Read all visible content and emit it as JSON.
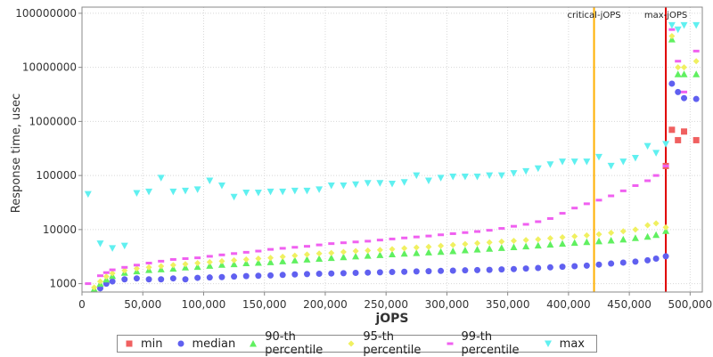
{
  "chart_data": {
    "type": "scatter",
    "title": "",
    "xlabel": "jOPS",
    "ylabel": "Response time, usec",
    "xlim": [
      0,
      510000
    ],
    "ylim": [
      700,
      130000000
    ],
    "y_scale": "log",
    "grid": true,
    "legend_placement": "bottom",
    "x_ticks": [
      0,
      50000,
      100000,
      150000,
      200000,
      250000,
      300000,
      350000,
      400000,
      450000,
      500000
    ],
    "x_tick_labels": [
      "0",
      "50,000",
      "100,000",
      "150,000",
      "200,000",
      "250,000",
      "300,000",
      "350,000",
      "400,000",
      "450,000",
      "500,000"
    ],
    "y_ticks": [
      1000,
      10000,
      100000,
      1000000,
      10000000,
      100000000
    ],
    "y_tick_labels": [
      "1000",
      "10000",
      "100000",
      "1000000",
      "10000000",
      "100000000"
    ],
    "markers": [
      {
        "label": "critical-jOPS",
        "x": 421000,
        "color": "#ffb000"
      },
      {
        "label": "max-jOPS",
        "x": 480000,
        "color": "#e00000"
      }
    ],
    "series": [
      {
        "name": "min",
        "color": "#f06060",
        "shape": "square",
        "points": [
          [
            480000,
            150000
          ],
          [
            485000,
            700000
          ],
          [
            490000,
            450000
          ],
          [
            495000,
            650000
          ],
          [
            505000,
            450000
          ]
        ]
      },
      {
        "name": "median",
        "color": "#6060f0",
        "shape": "circle",
        "points": [
          [
            15000,
            820
          ],
          [
            20000,
            1000
          ],
          [
            25000,
            1100
          ],
          [
            35000,
            1200
          ],
          [
            45000,
            1250
          ],
          [
            55000,
            1200
          ],
          [
            65000,
            1200
          ],
          [
            75000,
            1250
          ],
          [
            85000,
            1200
          ],
          [
            95000,
            1280
          ],
          [
            105000,
            1300
          ],
          [
            115000,
            1320
          ],
          [
            125000,
            1350
          ],
          [
            135000,
            1380
          ],
          [
            145000,
            1400
          ],
          [
            155000,
            1420
          ],
          [
            165000,
            1450
          ],
          [
            175000,
            1480
          ],
          [
            185000,
            1500
          ],
          [
            195000,
            1520
          ],
          [
            205000,
            1540
          ],
          [
            215000,
            1560
          ],
          [
            225000,
            1580
          ],
          [
            235000,
            1600
          ],
          [
            245000,
            1620
          ],
          [
            255000,
            1640
          ],
          [
            265000,
            1660
          ],
          [
            275000,
            1680
          ],
          [
            285000,
            1700
          ],
          [
            295000,
            1720
          ],
          [
            305000,
            1740
          ],
          [
            315000,
            1760
          ],
          [
            325000,
            1780
          ],
          [
            335000,
            1800
          ],
          [
            345000,
            1830
          ],
          [
            355000,
            1860
          ],
          [
            365000,
            1900
          ],
          [
            375000,
            1950
          ],
          [
            385000,
            2000
          ],
          [
            395000,
            2050
          ],
          [
            405000,
            2100
          ],
          [
            415000,
            2150
          ],
          [
            425000,
            2250
          ],
          [
            435000,
            2350
          ],
          [
            445000,
            2450
          ],
          [
            455000,
            2550
          ],
          [
            465000,
            2700
          ],
          [
            472000,
            2900
          ],
          [
            480000,
            3200
          ],
          [
            485000,
            5000000
          ],
          [
            490000,
            3500000
          ],
          [
            495000,
            2700000
          ],
          [
            505000,
            2600000
          ]
        ]
      },
      {
        "name": "90-th percentile",
        "color": "#60f060",
        "shape": "triangle-up",
        "points": [
          [
            10000,
            800
          ],
          [
            15000,
            1000
          ],
          [
            20000,
            1200
          ],
          [
            25000,
            1400
          ],
          [
            35000,
            1600
          ],
          [
            45000,
            1700
          ],
          [
            55000,
            1800
          ],
          [
            65000,
            1850
          ],
          [
            75000,
            1900
          ],
          [
            85000,
            2000
          ],
          [
            95000,
            2050
          ],
          [
            105000,
            2150
          ],
          [
            115000,
            2250
          ],
          [
            125000,
            2300
          ],
          [
            135000,
            2400
          ],
          [
            145000,
            2450
          ],
          [
            155000,
            2500
          ],
          [
            165000,
            2600
          ],
          [
            175000,
            2700
          ],
          [
            185000,
            2800
          ],
          [
            195000,
            2900
          ],
          [
            205000,
            3000
          ],
          [
            215000,
            3100
          ],
          [
            225000,
            3200
          ],
          [
            235000,
            3300
          ],
          [
            245000,
            3400
          ],
          [
            255000,
            3500
          ],
          [
            265000,
            3600
          ],
          [
            275000,
            3700
          ],
          [
            285000,
            3800
          ],
          [
            295000,
            3900
          ],
          [
            305000,
            4000
          ],
          [
            315000,
            4150
          ],
          [
            325000,
            4300
          ],
          [
            335000,
            4450
          ],
          [
            345000,
            4600
          ],
          [
            355000,
            4750
          ],
          [
            365000,
            4900
          ],
          [
            375000,
            5100
          ],
          [
            385000,
            5300
          ],
          [
            395000,
            5500
          ],
          [
            405000,
            5700
          ],
          [
            415000,
            5900
          ],
          [
            425000,
            6100
          ],
          [
            435000,
            6300
          ],
          [
            445000,
            6600
          ],
          [
            455000,
            7000
          ],
          [
            465000,
            7400
          ],
          [
            472000,
            8000
          ],
          [
            480000,
            9500
          ],
          [
            485000,
            33000000
          ],
          [
            490000,
            7500000
          ],
          [
            495000,
            7500000
          ],
          [
            505000,
            7500000
          ]
        ]
      },
      {
        "name": "95-th percentile",
        "color": "#f0f060",
        "shape": "diamond",
        "points": [
          [
            10000,
            850
          ],
          [
            15000,
            1100
          ],
          [
            20000,
            1350
          ],
          [
            25000,
            1550
          ],
          [
            35000,
            1750
          ],
          [
            45000,
            1900
          ],
          [
            55000,
            2000
          ],
          [
            65000,
            2100
          ],
          [
            75000,
            2200
          ],
          [
            85000,
            2300
          ],
          [
            95000,
            2400
          ],
          [
            105000,
            2500
          ],
          [
            115000,
            2600
          ],
          [
            125000,
            2700
          ],
          [
            135000,
            2800
          ],
          [
            145000,
            2900
          ],
          [
            155000,
            3000
          ],
          [
            165000,
            3150
          ],
          [
            175000,
            3300
          ],
          [
            185000,
            3450
          ],
          [
            195000,
            3600
          ],
          [
            205000,
            3700
          ],
          [
            215000,
            3850
          ],
          [
            225000,
            4000
          ],
          [
            235000,
            4100
          ],
          [
            245000,
            4200
          ],
          [
            255000,
            4350
          ],
          [
            265000,
            4500
          ],
          [
            275000,
            4650
          ],
          [
            285000,
            4800
          ],
          [
            295000,
            5000
          ],
          [
            305000,
            5200
          ],
          [
            315000,
            5400
          ],
          [
            325000,
            5600
          ],
          [
            335000,
            5800
          ],
          [
            345000,
            6000
          ],
          [
            355000,
            6200
          ],
          [
            365000,
            6400
          ],
          [
            375000,
            6600
          ],
          [
            385000,
            6900
          ],
          [
            395000,
            7200
          ],
          [
            405000,
            7500
          ],
          [
            415000,
            7800
          ],
          [
            425000,
            8200
          ],
          [
            435000,
            8700
          ],
          [
            445000,
            9300
          ],
          [
            455000,
            10000
          ],
          [
            465000,
            12000
          ],
          [
            472000,
            13000
          ],
          [
            480000,
            11000
          ],
          [
            485000,
            38000000
          ],
          [
            490000,
            10000000
          ],
          [
            495000,
            10000000
          ],
          [
            505000,
            13000000
          ]
        ]
      },
      {
        "name": "99-th percentile",
        "color": "#f060f0",
        "shape": "plus",
        "points": [
          [
            5000,
            1000
          ],
          [
            15000,
            1400
          ],
          [
            20000,
            1600
          ],
          [
            25000,
            1800
          ],
          [
            35000,
            2000
          ],
          [
            45000,
            2200
          ],
          [
            55000,
            2400
          ],
          [
            65000,
            2600
          ],
          [
            75000,
            2800
          ],
          [
            85000,
            2900
          ],
          [
            95000,
            3000
          ],
          [
            105000,
            3200
          ],
          [
            115000,
            3400
          ],
          [
            125000,
            3600
          ],
          [
            135000,
            3800
          ],
          [
            145000,
            4000
          ],
          [
            155000,
            4300
          ],
          [
            165000,
            4500
          ],
          [
            175000,
            4700
          ],
          [
            185000,
            4900
          ],
          [
            195000,
            5200
          ],
          [
            205000,
            5500
          ],
          [
            215000,
            5700
          ],
          [
            225000,
            5900
          ],
          [
            235000,
            6100
          ],
          [
            245000,
            6400
          ],
          [
            255000,
            6700
          ],
          [
            265000,
            7000
          ],
          [
            275000,
            7300
          ],
          [
            285000,
            7600
          ],
          [
            295000,
            8000
          ],
          [
            305000,
            8400
          ],
          [
            315000,
            8800
          ],
          [
            325000,
            9200
          ],
          [
            335000,
            9700
          ],
          [
            345000,
            10500
          ],
          [
            355000,
            11500
          ],
          [
            365000,
            12500
          ],
          [
            375000,
            14000
          ],
          [
            385000,
            16000
          ],
          [
            395000,
            20000
          ],
          [
            405000,
            25000
          ],
          [
            415000,
            30000
          ],
          [
            425000,
            35000
          ],
          [
            435000,
            42000
          ],
          [
            445000,
            52000
          ],
          [
            455000,
            65000
          ],
          [
            465000,
            80000
          ],
          [
            472000,
            100000
          ],
          [
            480000,
            150000
          ],
          [
            485000,
            50000000
          ],
          [
            490000,
            13000000
          ],
          [
            495000,
            3500000
          ],
          [
            505000,
            20000000
          ]
        ]
      },
      {
        "name": "max",
        "color": "#60f0f0",
        "shape": "triangle-down",
        "points": [
          [
            5000,
            45000
          ],
          [
            15000,
            5500
          ],
          [
            25000,
            4500
          ],
          [
            35000,
            5000
          ],
          [
            45000,
            47000
          ],
          [
            55000,
            50000
          ],
          [
            65000,
            90000
          ],
          [
            75000,
            50000
          ],
          [
            85000,
            52000
          ],
          [
            95000,
            55000
          ],
          [
            105000,
            80000
          ],
          [
            115000,
            65000
          ],
          [
            125000,
            40000
          ],
          [
            135000,
            48000
          ],
          [
            145000,
            48000
          ],
          [
            155000,
            50000
          ],
          [
            165000,
            50000
          ],
          [
            175000,
            52000
          ],
          [
            185000,
            52000
          ],
          [
            195000,
            55000
          ],
          [
            205000,
            65000
          ],
          [
            215000,
            65000
          ],
          [
            225000,
            68000
          ],
          [
            235000,
            72000
          ],
          [
            245000,
            72000
          ],
          [
            255000,
            70000
          ],
          [
            265000,
            75000
          ],
          [
            275000,
            100000
          ],
          [
            285000,
            80000
          ],
          [
            295000,
            90000
          ],
          [
            305000,
            95000
          ],
          [
            315000,
            95000
          ],
          [
            325000,
            95000
          ],
          [
            335000,
            100000
          ],
          [
            345000,
            100000
          ],
          [
            355000,
            110000
          ],
          [
            365000,
            120000
          ],
          [
            375000,
            135000
          ],
          [
            385000,
            160000
          ],
          [
            395000,
            180000
          ],
          [
            405000,
            180000
          ],
          [
            415000,
            180000
          ],
          [
            425000,
            220000
          ],
          [
            435000,
            150000
          ],
          [
            445000,
            180000
          ],
          [
            455000,
            210000
          ],
          [
            465000,
            350000
          ],
          [
            472000,
            260000
          ],
          [
            480000,
            380000
          ],
          [
            485000,
            60000000
          ],
          [
            490000,
            50000000
          ],
          [
            495000,
            60000000
          ],
          [
            505000,
            60000000
          ]
        ]
      }
    ]
  }
}
